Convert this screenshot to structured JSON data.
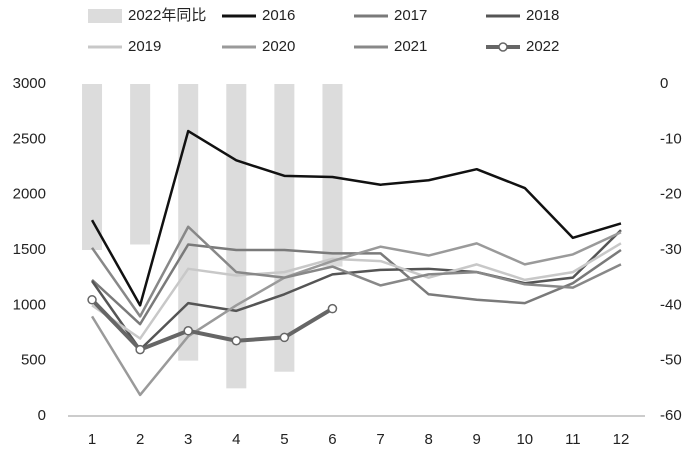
{
  "chart_data": {
    "type": "line",
    "categories": [
      "1",
      "2",
      "3",
      "4",
      "5",
      "6",
      "7",
      "8",
      "9",
      "10",
      "11",
      "12"
    ],
    "ylim": [
      0,
      3000
    ],
    "yticks": [
      0,
      500,
      1000,
      1500,
      2000,
      2500,
      3000
    ],
    "y2lim": [
      -60,
      0
    ],
    "y2ticks": [
      0,
      -10,
      -20,
      -30,
      -40,
      -50,
      -60
    ],
    "series": [
      {
        "name": "2022年同比",
        "type": "bar",
        "axis": "y2",
        "color": "#dcdcdc",
        "values": [
          -30,
          -29,
          -50,
          -55,
          -52,
          -33,
          null,
          null,
          null,
          null,
          null,
          null
        ]
      },
      {
        "name": "2016",
        "color": "#111111",
        "values": [
          1770,
          1000,
          2575,
          2310,
          2170,
          2160,
          2090,
          2130,
          2230,
          2060,
          1610,
          1740
        ]
      },
      {
        "name": "2017",
        "color": "#7a7a7a",
        "values": [
          1230,
          830,
          1550,
          1500,
          1500,
          1470,
          1470,
          1100,
          1050,
          1020,
          1200,
          1500
        ]
      },
      {
        "name": "2018",
        "color": "#555555",
        "values": [
          1220,
          600,
          1020,
          950,
          1100,
          1280,
          1320,
          1330,
          1300,
          1200,
          1250,
          1680
        ]
      },
      {
        "name": "2019",
        "color": "#c8c8c8",
        "values": [
          1000,
          700,
          1330,
          1270,
          1300,
          1420,
          1400,
          1250,
          1370,
          1230,
          1300,
          1560
        ]
      },
      {
        "name": "2020",
        "color": "#9a9a9a",
        "values": [
          900,
          190,
          720,
          1000,
          1250,
          1400,
          1530,
          1450,
          1560,
          1370,
          1460,
          1660
        ]
      },
      {
        "name": "2021",
        "color": "#888888",
        "values": [
          1520,
          900,
          1710,
          1300,
          1250,
          1350,
          1180,
          1280,
          1300,
          1190,
          1160,
          1370
        ]
      },
      {
        "name": "2022",
        "color": "#666666",
        "marker": true,
        "values": [
          1050,
          600,
          770,
          680,
          710,
          970,
          null,
          null,
          null,
          null,
          null,
          null
        ]
      }
    ]
  }
}
